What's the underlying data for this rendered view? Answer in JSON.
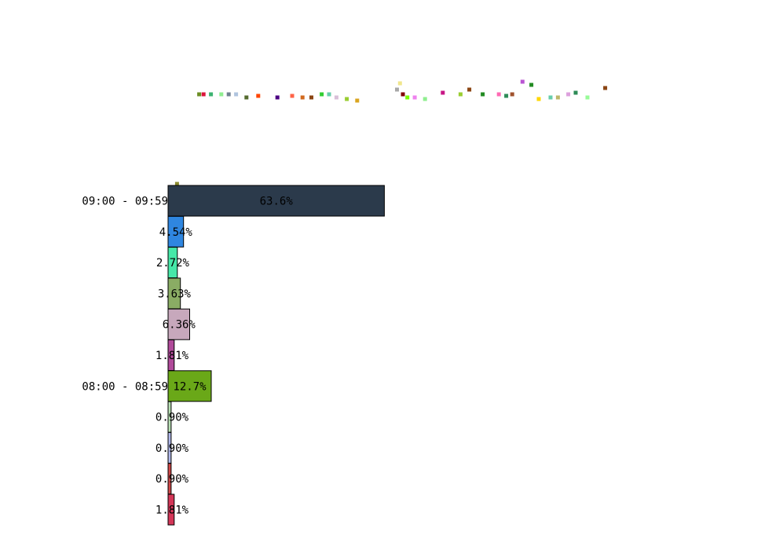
{
  "chart_data": [
    {
      "type": "scatter",
      "points": [
        {
          "x": 0.5,
          "y": 108,
          "color": "#8b8b2e",
          "marker": "square"
        },
        {
          "x": 2,
          "y": 51,
          "color": "#6b8e23",
          "marker": "square"
        },
        {
          "x": 2.3,
          "y": 51,
          "color": "#dc143c",
          "marker": "square"
        },
        {
          "x": 2.8,
          "y": 51,
          "color": "#3cb371",
          "marker": "square"
        },
        {
          "x": 3.5,
          "y": 51,
          "color": "#90ee90",
          "marker": "square"
        },
        {
          "x": 4,
          "y": 51,
          "color": "#708090",
          "marker": "square"
        },
        {
          "x": 4.5,
          "y": 51,
          "color": "#b0c4de",
          "marker": "square"
        },
        {
          "x": 5.2,
          "y": 53,
          "color": "#556b2f",
          "marker": "square"
        },
        {
          "x": 6,
          "y": 52,
          "color": "#ff4500",
          "marker": "square"
        },
        {
          "x": 7.3,
          "y": 53,
          "color": "#4b0082",
          "marker": "square"
        },
        {
          "x": 8.3,
          "y": 52,
          "color": "#ff6347",
          "marker": "square"
        },
        {
          "x": 9,
          "y": 53,
          "color": "#d2691e",
          "marker": "square"
        },
        {
          "x": 9.6,
          "y": 53,
          "color": "#8b4513",
          "marker": "square"
        },
        {
          "x": 10.3,
          "y": 51,
          "color": "#32cd32",
          "marker": "square"
        },
        {
          "x": 10.8,
          "y": 51,
          "color": "#66cdaa",
          "marker": "square"
        },
        {
          "x": 11.3,
          "y": 53,
          "color": "#d8bfd8",
          "marker": "square"
        },
        {
          "x": 12,
          "y": 54,
          "color": "#9acd32",
          "marker": "square"
        },
        {
          "x": 12.7,
          "y": 55,
          "color": "#daa520",
          "marker": "square"
        },
        {
          "x": 15.4,
          "y": 48,
          "color": "#a9a9a9",
          "marker": "square"
        },
        {
          "x": 15.6,
          "y": 44,
          "color": "#f0e68c",
          "marker": "square"
        },
        {
          "x": 15.8,
          "y": 51,
          "color": "#800000",
          "marker": "square"
        },
        {
          "x": 16.1,
          "y": 53,
          "color": "#7cfc00",
          "marker": "square"
        },
        {
          "x": 16.6,
          "y": 53,
          "color": "#ee82ee",
          "marker": "square"
        },
        {
          "x": 17.3,
          "y": 54,
          "color": "#90ee90",
          "marker": "square"
        },
        {
          "x": 18.5,
          "y": 50,
          "color": "#c71585",
          "marker": "square"
        },
        {
          "x": 19.7,
          "y": 51,
          "color": "#9acd32",
          "marker": "square"
        },
        {
          "x": 20.3,
          "y": 48,
          "color": "#8b4513",
          "marker": "square"
        },
        {
          "x": 21.2,
          "y": 51,
          "color": "#228b22",
          "marker": "square"
        },
        {
          "x": 22.3,
          "y": 51,
          "color": "#ff69b4",
          "marker": "square"
        },
        {
          "x": 22.8,
          "y": 52,
          "color": "#2e8b57",
          "marker": "square"
        },
        {
          "x": 23.2,
          "y": 51,
          "color": "#a0522d",
          "marker": "square"
        },
        {
          "x": 23.9,
          "y": 43,
          "color": "#ba55d3",
          "marker": "square"
        },
        {
          "x": 24.5,
          "y": 45,
          "color": "#228b22",
          "marker": "square"
        },
        {
          "x": 25,
          "y": 54,
          "color": "#ffd700",
          "marker": "square"
        },
        {
          "x": 25.8,
          "y": 53,
          "color": "#66cdaa",
          "marker": "square"
        },
        {
          "x": 26.3,
          "y": 53,
          "color": "#bdb76b",
          "marker": "square"
        },
        {
          "x": 27,
          "y": 51,
          "color": "#dda0dd",
          "marker": "square"
        },
        {
          "x": 27.5,
          "y": 50,
          "color": "#2e8b57",
          "marker": "square"
        },
        {
          "x": 28.3,
          "y": 53,
          "color": "#98fb98",
          "marker": "square"
        },
        {
          "x": 29.5,
          "y": 47,
          "color": "#8b4513",
          "marker": "square"
        }
      ]
    },
    {
      "type": "bar",
      "orientation": "horizontal",
      "categories": [
        "09:00 - 09:59",
        "",
        "",
        "",
        "",
        "",
        "08:00 - 08:59",
        "",
        "",
        "",
        ""
      ],
      "values": [
        63.6,
        4.54,
        2.72,
        3.63,
        6.36,
        1.81,
        12.7,
        0.9,
        0.9,
        0.9,
        1.81
      ],
      "value_labels": [
        "63.6%",
        "4.54%",
        "2.72%",
        "3.63%",
        "6.36%",
        "1.81%",
        "12.7%",
        "0.90%",
        "0.90%",
        "0.90%",
        "1.81%"
      ],
      "colors": [
        "#2b3a4b",
        "#2f86e0",
        "#46e8a8",
        "#8aac64",
        "#c7a8bc",
        "#b04a9a",
        "#6aa818",
        "#b8e0b4",
        "#b0b8ea",
        "#d04848",
        "#d43658"
      ]
    }
  ]
}
